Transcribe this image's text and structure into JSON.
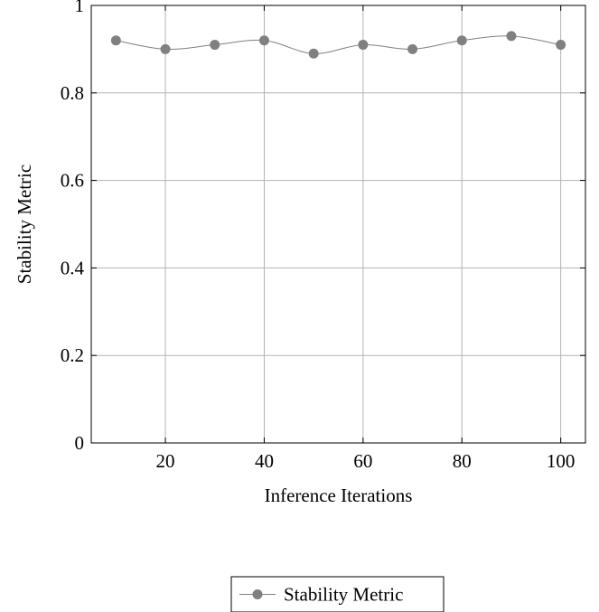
{
  "chart_data": {
    "type": "line",
    "title": "",
    "xlabel": "Inference Iterations",
    "ylabel": "Stability Metric",
    "xlim": [
      5,
      105
    ],
    "ylim": [
      0,
      1.0
    ],
    "xticks": [
      20,
      40,
      60,
      80,
      100
    ],
    "xtick_labels": [
      "20",
      "40",
      "60",
      "80",
      "100"
    ],
    "yticks": [
      0,
      0.2,
      0.4,
      0.6,
      0.8,
      1.0
    ],
    "ytick_labels": [
      "0",
      "0.2",
      "0.4",
      "0.6",
      "0.8",
      "1"
    ],
    "grid": true,
    "legend_position": "bottom-center",
    "series": [
      {
        "name": "Stability Metric",
        "color": "#808080",
        "marker": "circle",
        "smooth": true,
        "x": [
          10,
          20,
          30,
          40,
          50,
          60,
          70,
          80,
          90,
          100
        ],
        "y": [
          0.92,
          0.9,
          0.91,
          0.92,
          0.89,
          0.91,
          0.9,
          0.92,
          0.93,
          0.91
        ]
      }
    ]
  }
}
